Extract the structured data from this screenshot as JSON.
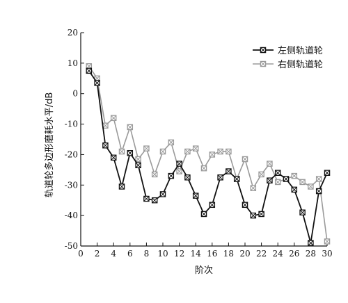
{
  "chart_data": {
    "type": "line",
    "xlabel": "阶次",
    "ylabel": "轨道轮多边形磨耗水平/dB",
    "xlim": [
      0,
      30
    ],
    "ylim": [
      -50,
      20
    ],
    "xticks": [
      0,
      2,
      4,
      6,
      8,
      10,
      12,
      14,
      16,
      18,
      20,
      22,
      24,
      26,
      28,
      30
    ],
    "yticks": [
      -50,
      -40,
      -30,
      -20,
      -10,
      0,
      10,
      20
    ],
    "legend_position": "top-right",
    "x": [
      1,
      2,
      3,
      4,
      5,
      6,
      7,
      8,
      9,
      10,
      11,
      12,
      13,
      14,
      15,
      16,
      17,
      18,
      19,
      20,
      21,
      22,
      23,
      24,
      25,
      26,
      27,
      28,
      29,
      30
    ],
    "series": [
      {
        "name": "左侧轨道轮",
        "color": "#111111",
        "marker": "filled-square-x",
        "values": [
          7.5,
          3.5,
          -17,
          -21,
          -30.5,
          -19.5,
          -23.5,
          -34.5,
          -35,
          -33,
          -27,
          -23,
          -27.5,
          -33.5,
          -39.5,
          -36.5,
          -27.5,
          -25.5,
          -28,
          -36.5,
          -40,
          -39.5,
          -28.5,
          -26,
          -28,
          -31.5,
          -39,
          -49,
          -32,
          -26
        ]
      },
      {
        "name": "右侧轨道轮",
        "color": "#9a9a9a",
        "marker": "open-square-x",
        "values": [
          9,
          5,
          -10.5,
          -8,
          -19,
          -11,
          -21.5,
          -18,
          -26.5,
          -19,
          -16,
          -25.5,
          -19,
          -18,
          -24.5,
          -20,
          -19,
          -19,
          -28,
          -21.5,
          -31,
          -26.5,
          -23,
          -29,
          -28,
          -27,
          -29,
          -30.5,
          -28,
          -48.5
        ]
      }
    ]
  }
}
